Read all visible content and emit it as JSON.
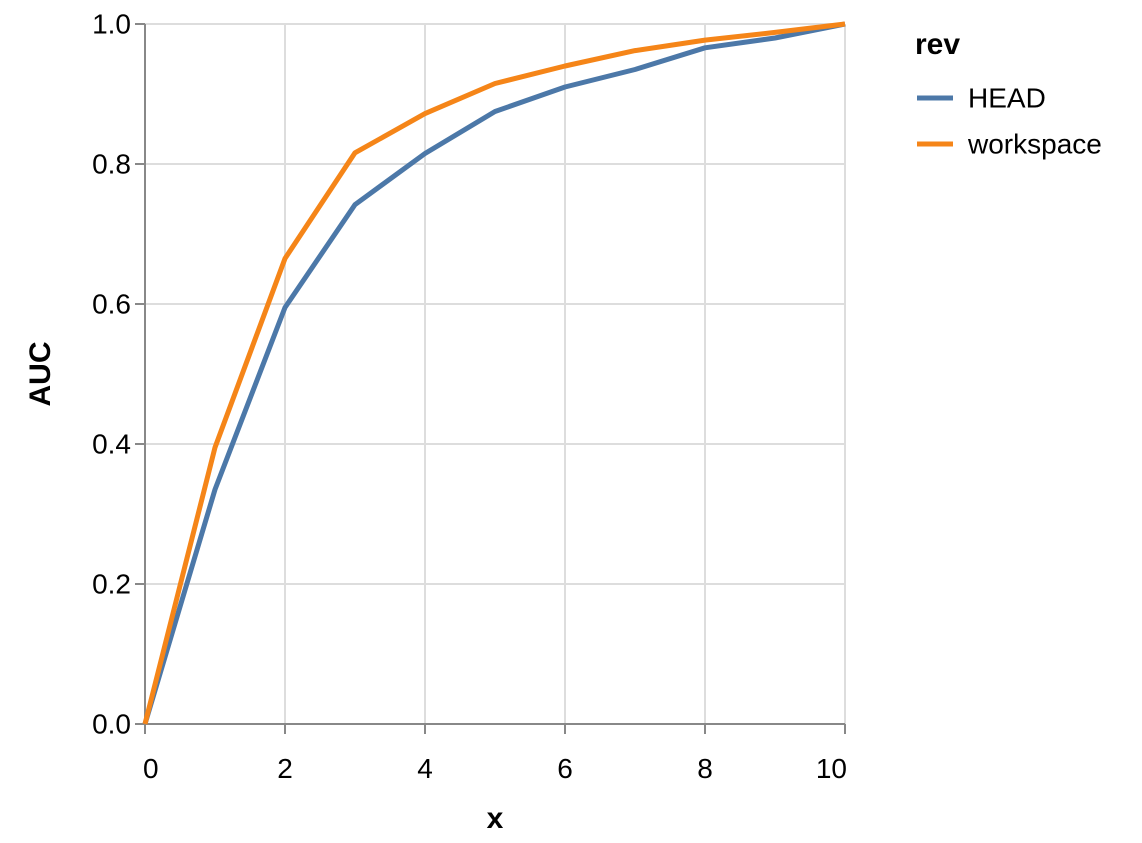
{
  "chart_data": {
    "type": "line",
    "xlabel": "x",
    "ylabel": "AUC",
    "xlim": [
      0,
      10
    ],
    "ylim": [
      0,
      1
    ],
    "x_ticks": [
      0,
      2,
      4,
      6,
      8,
      10
    ],
    "x_tick_labels": [
      "0",
      "2",
      "4",
      "6",
      "8",
      "10"
    ],
    "y_ticks": [
      0,
      0.2,
      0.4,
      0.6,
      0.8,
      1.0
    ],
    "y_tick_labels": [
      "0.0",
      "0.2",
      "0.4",
      "0.6",
      "0.8",
      "1.0"
    ],
    "grid": true,
    "legend": {
      "title": "rev",
      "placement": "right"
    },
    "x": [
      0,
      1,
      2,
      3,
      4,
      5,
      6,
      7,
      8,
      9,
      10
    ],
    "series": [
      {
        "name": "HEAD",
        "color": "#4c78a8",
        "values": [
          0.0,
          0.335,
          0.595,
          0.742,
          0.815,
          0.875,
          0.91,
          0.935,
          0.966,
          0.98,
          1.0
        ]
      },
      {
        "name": "workspace",
        "color": "#f58518",
        "values": [
          0.0,
          0.395,
          0.665,
          0.816,
          0.872,
          0.915,
          0.94,
          0.962,
          0.977,
          0.988,
          1.0
        ]
      }
    ]
  }
}
